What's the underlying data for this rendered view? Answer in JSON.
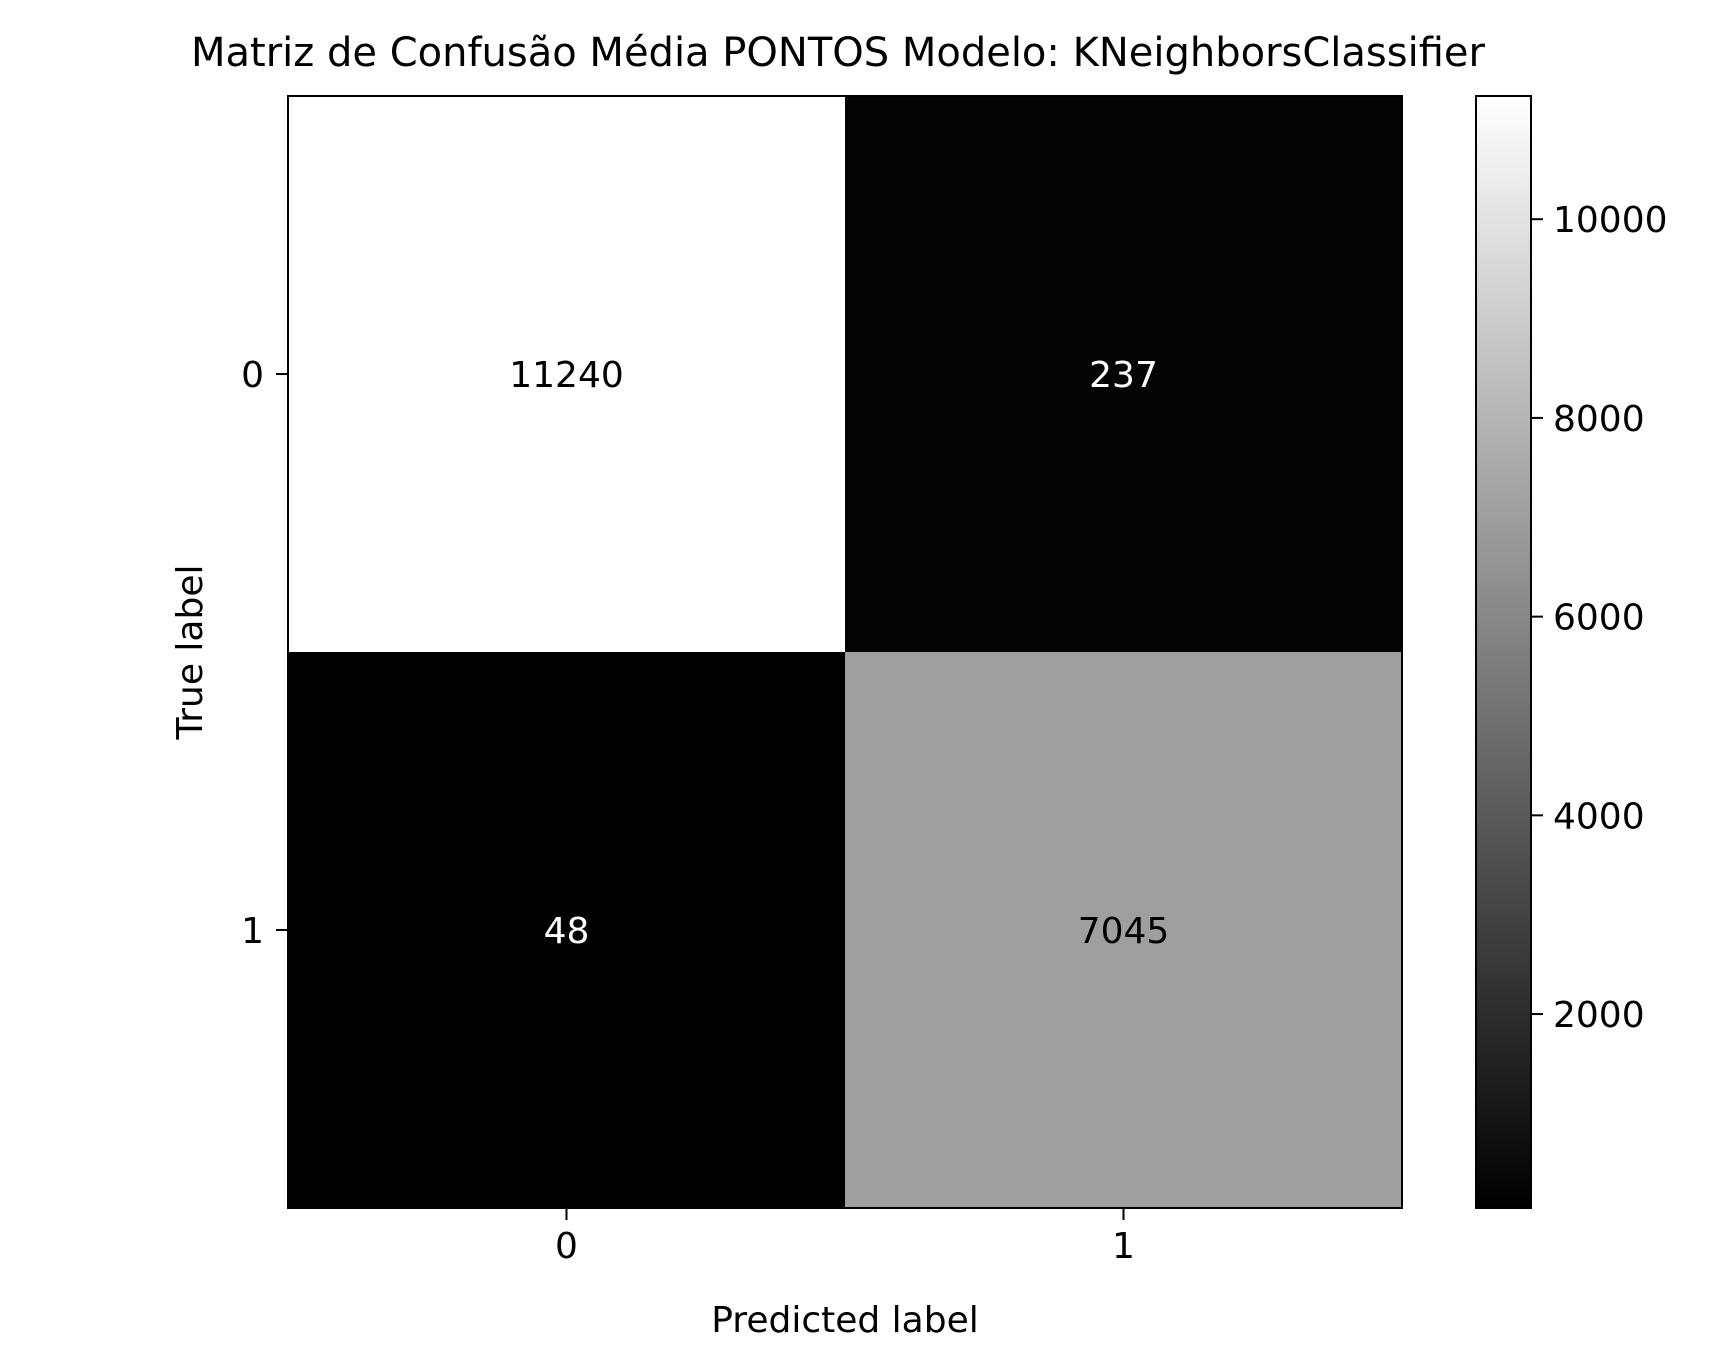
{
  "chart_data": {
    "type": "heatmap",
    "title": "Matriz de Confusão Média PONTOS Modelo: KNeighborsClassifier",
    "xlabel": "Predicted label",
    "ylabel": "True label",
    "x_categories": [
      "0",
      "1"
    ],
    "y_categories": [
      "0",
      "1"
    ],
    "matrix": [
      [
        11240,
        237
      ],
      [
        48,
        7045
      ]
    ],
    "cell_labels": [
      [
        "11240",
        "237"
      ],
      [
        "48",
        "7045"
      ]
    ],
    "colormap": "gray",
    "color_min": 48,
    "color_max": 11240,
    "colorbar": {
      "ticks": [
        2000,
        4000,
        6000,
        8000,
        10000
      ],
      "tick_labels": [
        "2000",
        "4000",
        "6000",
        "8000",
        "10000"
      ]
    },
    "grid": false
  }
}
